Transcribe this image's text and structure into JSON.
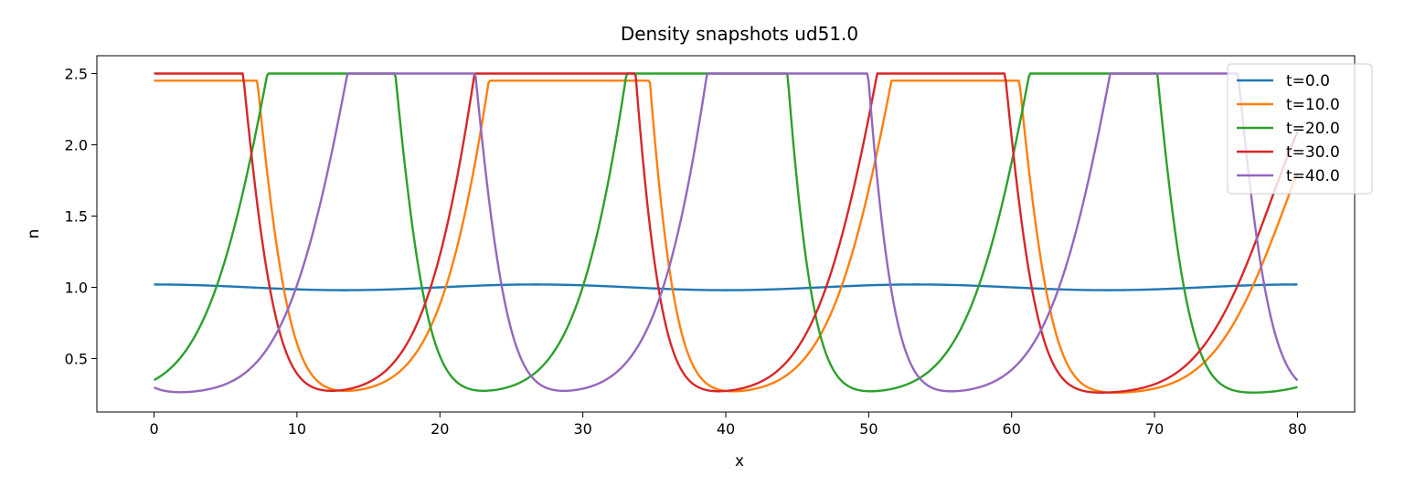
{
  "chart_data": {
    "type": "line",
    "title": "Density snapshots  ud51.0",
    "xlabel": "x",
    "ylabel": "n",
    "xlim": [
      -4,
      84
    ],
    "ylim": [
      0.125,
      2.625
    ],
    "xticks": [
      0,
      10,
      20,
      30,
      40,
      50,
      60,
      70,
      80
    ],
    "yticks": [
      0.5,
      1.0,
      1.5,
      2.0,
      2.5
    ],
    "xtick_labels": [
      "0",
      "10",
      "20",
      "30",
      "40",
      "50",
      "60",
      "70",
      "80"
    ],
    "ytick_labels": [
      "0.5",
      "1.0",
      "1.5",
      "2.0",
      "2.5"
    ],
    "grid": false,
    "legend_position": "top-right",
    "series": [
      {
        "name": "t=0.0",
        "color": "#1f77b4",
        "form": "sine",
        "mean": 1.0,
        "amplitude": 0.02,
        "period": 26.667,
        "phase": 0
      },
      {
        "name": "t=10.0",
        "color": "#ff7f0e",
        "form": "pulse",
        "base": 0.25,
        "peak": 2.45,
        "peak_x": [
          4.2,
          30.8,
          57.5
        ],
        "rise_width": 5.0,
        "fall_width": 2.6
      },
      {
        "name": "t=20.0",
        "color": "#2ca02c",
        "form": "pulse",
        "base": 0.25,
        "peak": 2.5,
        "peak_x": [
          13.8,
          40.5,
          67.1
        ],
        "rise_width": 5.0,
        "fall_width": 2.6
      },
      {
        "name": "t=30.0",
        "color": "#d62728",
        "form": "pulse",
        "base": 0.25,
        "peak": 2.5,
        "peak_x": [
          3.2,
          29.8,
          56.5
        ],
        "rise_width": 5.0,
        "fall_width": 2.6
      },
      {
        "name": "t=40.0",
        "color": "#9467bd",
        "form": "pulse",
        "base": 0.25,
        "peak": 2.5,
        "peak_x": [
          19.4,
          46.1,
          72.8
        ],
        "rise_width": 5.0,
        "fall_width": 2.6
      }
    ],
    "x_domain": [
      0,
      80
    ],
    "period": 26.667
  }
}
